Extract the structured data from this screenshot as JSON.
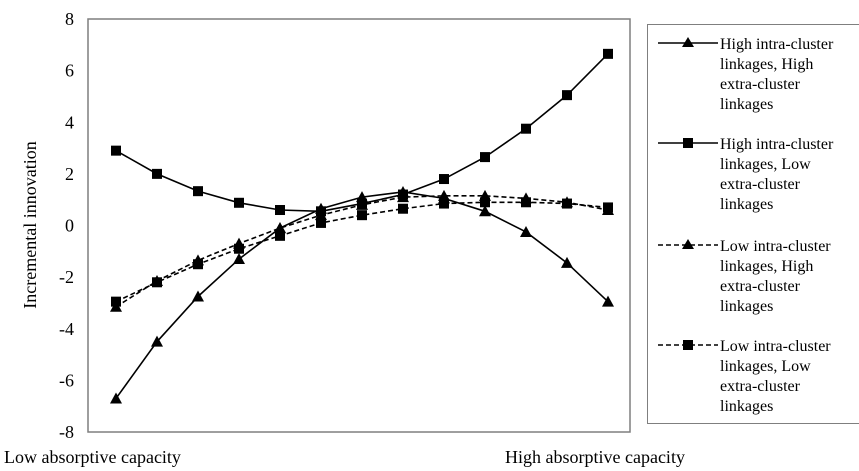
{
  "chart_data": {
    "type": "line",
    "title": "",
    "ylabel": "Incremental innovation",
    "xlabel_left": "Low absorptive capacity",
    "xlabel_right": "High absorptive capacity",
    "ylim": [
      -8,
      8
    ],
    "yticks": [
      "8",
      "6",
      "4",
      "2",
      "0",
      "-2",
      "-4",
      "-6",
      "-8"
    ],
    "x": [
      1,
      2,
      3,
      4,
      5,
      6,
      7,
      8,
      9,
      10,
      11,
      12,
      13,
      14
    ],
    "grid": false,
    "legend_position": "right",
    "series": [
      {
        "name": "High intra-cluster linkages, High extra-cluster linkages",
        "label_lines": "High intra-cluster\nlinkages, High\nextra-cluster\nlinkages",
        "marker": "triangle",
        "dash": "solid",
        "values": [
          -6.7,
          -4.5,
          -2.75,
          -1.3,
          -0.1,
          0.65,
          1.1,
          1.3,
          1.05,
          0.55,
          -0.25,
          -1.45,
          -2.95,
          null
        ]
      },
      {
        "name": "High intra-cluster linkages, Low extra-cluster linkages",
        "label_lines": "High intra-cluster\nlinkages, Low\nextra-cluster\nlinkages",
        "marker": "square",
        "dash": "solid",
        "values": [
          2.9,
          2.0,
          1.33,
          0.88,
          0.6,
          0.55,
          0.85,
          1.2,
          1.8,
          2.65,
          3.75,
          5.05,
          6.65,
          null
        ]
      },
      {
        "name": "Low intra-cluster linkages, High extra-cluster linkages",
        "label_lines": "Low intra-cluster\nlinkages, High\nextra-cluster\nlinkages",
        "marker": "triangle",
        "dash": "dashed",
        "values": [
          -3.15,
          -2.15,
          -1.35,
          -0.7,
          -0.1,
          0.4,
          0.8,
          1.1,
          1.15,
          1.15,
          1.05,
          0.9,
          0.6,
          null
        ]
      },
      {
        "name": "Low intra-cluster linkages, Low extra-cluster linkages",
        "label_lines": "Low intra-cluster\nlinkages, Low\nextra-cluster\nlinkages",
        "marker": "square",
        "dash": "dashed",
        "values": [
          -2.95,
          -2.2,
          -1.5,
          -0.9,
          -0.4,
          0.1,
          0.4,
          0.65,
          0.85,
          0.9,
          0.9,
          0.85,
          0.7,
          null
        ]
      }
    ]
  }
}
